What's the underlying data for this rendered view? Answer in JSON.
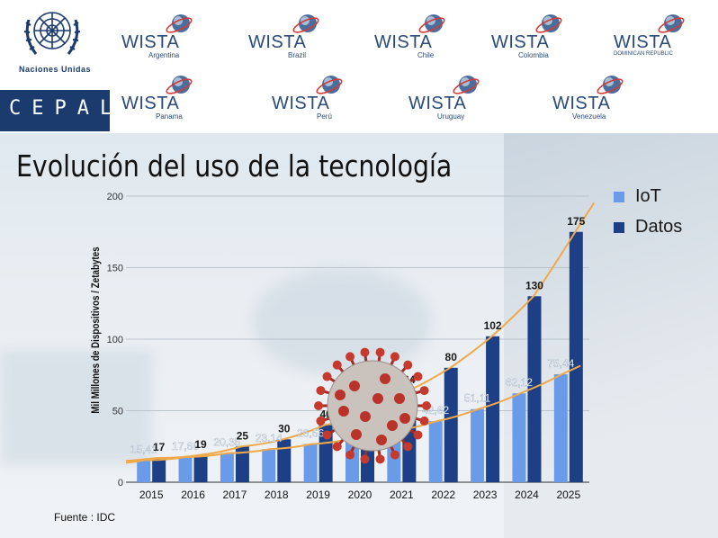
{
  "header": {
    "un_label": "Naciones Unidas",
    "cepal_label": "CEPAL",
    "wista_logos": [
      {
        "name": "WISTA",
        "country": "Argentina"
      },
      {
        "name": "WISTA",
        "country": "Brazil"
      },
      {
        "name": "WISTA",
        "country": "Chile"
      },
      {
        "name": "WISTA",
        "country": "Colombia"
      },
      {
        "name": "WISTA",
        "country": "DOMINICAN REPUBLIC"
      },
      {
        "name": "WISTA",
        "country": "Panama"
      },
      {
        "name": "WISTA",
        "country": "Perú"
      },
      {
        "name": "WISTA",
        "country": "Uruguay"
      },
      {
        "name": "WISTA",
        "country": "Venezuela"
      }
    ]
  },
  "chart_data": {
    "type": "bar",
    "title": "Evolución del uso de la tecnología",
    "ylabel": "Mil Millones de Dispositivos / Zetabytes",
    "xlabel": "",
    "ylim": [
      0,
      200
    ],
    "yticks": [
      "0",
      "50",
      "100",
      "150",
      "200"
    ],
    "categories": [
      "2015",
      "2016",
      "2017",
      "2018",
      "2019",
      "2020",
      "2021",
      "2022",
      "2023",
      "2024",
      "2025"
    ],
    "series": [
      {
        "name": "IoT",
        "color": "#6a9be8",
        "values": [
          15.41,
          17.68,
          20.35,
          23.14,
          26.66,
          30.73,
          35.82,
          42.62,
          51.11,
          62.12,
          75.44
        ],
        "labels": [
          "15,41",
          "17,68",
          "20,35",
          "23,14",
          "26,66",
          "",
          "",
          "42,62",
          "51,11",
          "62,12",
          "75,44"
        ]
      },
      {
        "name": "Datos",
        "color": "#1d3f85",
        "values": [
          17,
          19,
          25,
          30,
          40,
          47,
          64,
          80,
          102,
          130,
          175
        ],
        "labels": [
          "17",
          "19",
          "25",
          "30",
          "40",
          "",
          "64",
          "80",
          "102",
          "130",
          "175"
        ]
      }
    ],
    "legend": "top-right",
    "trendline_color": "#f0a948",
    "grid": true
  },
  "source": "Fuente : IDC"
}
